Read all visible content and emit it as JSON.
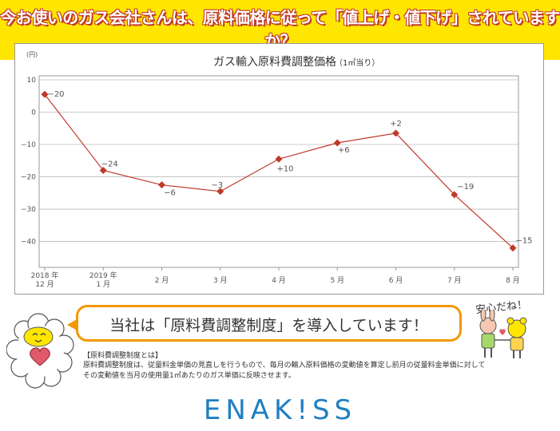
{
  "banner": {
    "title": "今お使いのガス会社さんは、原料価格に従って「値上げ・値下げ」されていますか？"
  },
  "chart_data": {
    "type": "line",
    "title": "ガス輸入原料費調整価格",
    "subtitle": "（1㎥当り）",
    "y_unit": "(円)",
    "ylim": [
      -48,
      10
    ],
    "y_ticks": [
      10,
      0,
      -10,
      -20,
      -30,
      -40
    ],
    "categories": [
      {
        "line1": "2018 年",
        "line2": "12 月"
      },
      {
        "line1": "2019 年",
        "line2": "1 月"
      },
      {
        "line1": "",
        "line2": "2 月"
      },
      {
        "line1": "",
        "line2": "3 月"
      },
      {
        "line1": "",
        "line2": "4 月"
      },
      {
        "line1": "",
        "line2": "5 月"
      },
      {
        "line1": "",
        "line2": "6 月"
      },
      {
        "line1": "",
        "line2": "7 月"
      },
      {
        "line1": "",
        "line2": "8 月"
      }
    ],
    "values": [
      5.5,
      -18,
      -22.5,
      -24.5,
      -14.5,
      -9.5,
      -6.5,
      -25.5,
      -42
    ],
    "data_labels": [
      "−20",
      "−24",
      "−6",
      "−3",
      "+10",
      "+6",
      "+2",
      "−19",
      "−15"
    ],
    "grid": true,
    "color": "#c0392b"
  },
  "callout": {
    "text": "当社は「原料費調整制度」を導入しています！"
  },
  "anshin": "安心だね！",
  "description": {
    "heading": "【原料費調整制度とは】",
    "line1": "原料費調整制度は、従量料金単価の見直しを行うもので、毎月の輸入原料価格の変動値を算定し前月の従量料金単価に対して",
    "line2": "その変動値を当月の使用量1㎥あたりのガス単価に反映させます。"
  },
  "logo": {
    "text": "ENAK!SS"
  }
}
